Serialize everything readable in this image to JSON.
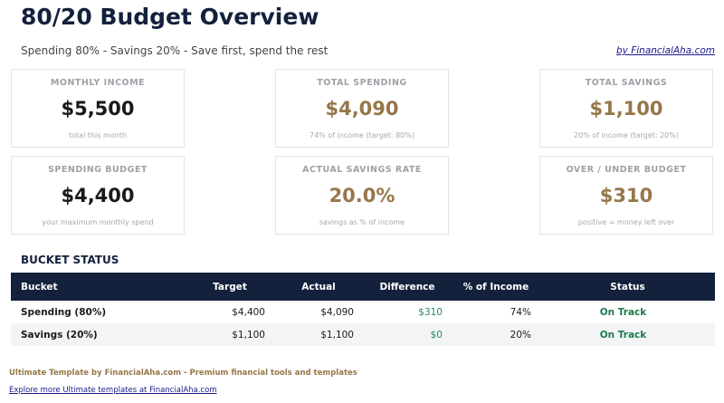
{
  "header": {
    "title": "80/20 Budget Overview",
    "subtitle": "Spending 80% - Savings 20% - Save first, spend the rest",
    "byline": "by FinancialAha.com"
  },
  "cards": [
    {
      "label": "MONTHLY INCOME",
      "value": "$5,500",
      "sub": "total this month"
    },
    {
      "label": "TOTAL SPENDING",
      "value": "$4,090",
      "sub": "74% of income (target: 80%)"
    },
    {
      "label": "TOTAL SAVINGS",
      "value": "$1,100",
      "sub": "20% of income (target: 20%)"
    },
    {
      "label": "SPENDING BUDGET",
      "value": "$4,400",
      "sub": "your maximum monthly spend"
    },
    {
      "label": "ACTUAL SAVINGS RATE",
      "value": "20.0%",
      "sub": "savings as % of income"
    },
    {
      "label": "OVER / UNDER BUDGET",
      "value": "$310",
      "sub": "positive = money left over"
    }
  ],
  "bucket_status": {
    "title": "BUCKET STATUS",
    "columns": [
      "Bucket",
      "Target",
      "Actual",
      "Difference",
      "% of Income",
      "Status"
    ],
    "rows": [
      [
        "Spending (80%)",
        "$4,400",
        "$4,090",
        "$310",
        "74%",
        "On Track"
      ],
      [
        "Savings (20%)",
        "$1,100",
        "$1,100",
        "$0",
        "20%",
        "On Track"
      ]
    ]
  },
  "footer": {
    "tagline": "Ultimate Template by FinancialAha.com - Premium financial tools and templates",
    "link": "Explore more Ultimate templates at FinancialAha.com"
  },
  "colors": {
    "navy": "#14213d",
    "gold": "#96774a",
    "green": "#1a7a4a"
  }
}
